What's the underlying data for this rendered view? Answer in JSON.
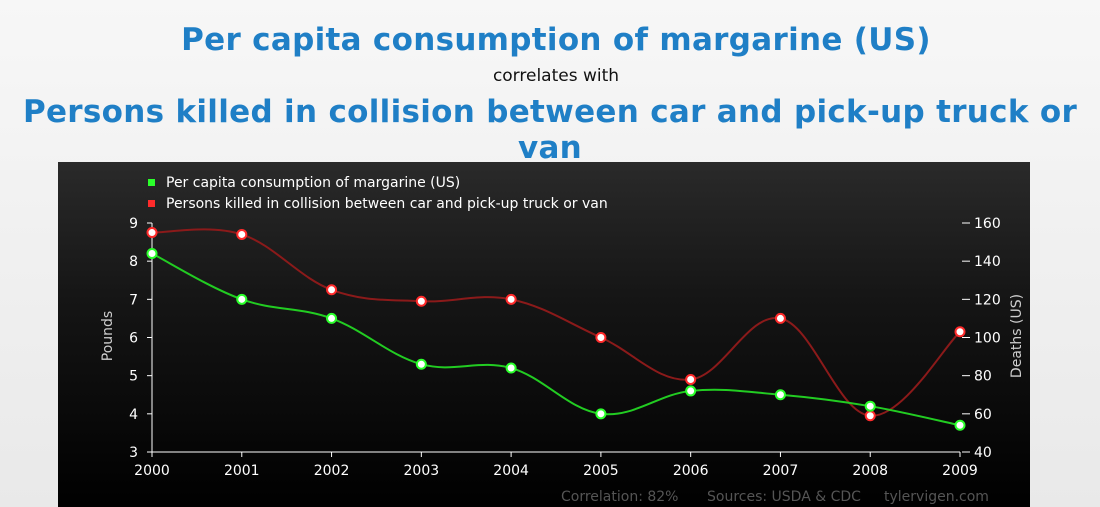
{
  "header": {
    "title": "Per capita consumption of margarine (US)",
    "subtitle": "correlates with",
    "title2": "Persons killed in collision between car and pick-up truck or van"
  },
  "chart_data": {
    "type": "line",
    "x": [
      2000,
      2001,
      2002,
      2003,
      2004,
      2005,
      2006,
      2007,
      2008,
      2009
    ],
    "series": [
      {
        "name": "Per capita consumption of margarine (US)",
        "axis": "left",
        "color": "#22cc22",
        "marker_color": "#2bff2b",
        "values": [
          8.2,
          7.0,
          6.5,
          5.3,
          5.2,
          4.0,
          4.6,
          4.5,
          4.2,
          3.7
        ]
      },
      {
        "name": "Persons killed in collision between car and pick-up truck or van",
        "axis": "right",
        "color": "#8b1a1a",
        "marker_color": "#ff2b2b",
        "values": [
          155,
          154,
          125,
          119,
          120,
          100,
          78,
          110,
          59,
          103
        ]
      }
    ],
    "ylabel": "Pounds",
    "ylim": [
      3,
      9
    ],
    "yticks": [
      3,
      4,
      5,
      6,
      7,
      8,
      9
    ],
    "y2label": "Deaths (US)",
    "y2lim": [
      40,
      160
    ],
    "y2ticks": [
      40,
      60,
      80,
      100,
      120,
      140,
      160
    ],
    "legend_position": "top-left",
    "grid": false
  },
  "footer": {
    "correlation": "Correlation: 82%",
    "sources": "Sources: USDA & CDC",
    "site": "tylervigen.com"
  }
}
